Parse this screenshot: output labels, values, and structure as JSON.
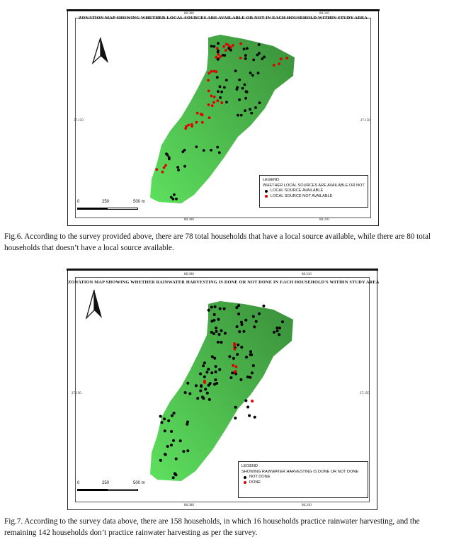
{
  "map1": {
    "title": "ZONATION MAP SHOWING WHETHER LOCAL SOURCES ARE AVAILABLE OR NOT IN EACH HOUSEHOLD WITHIN STUDY AREA",
    "coords": {
      "top_left": "88.300",
      "top_right": "88.310",
      "bottom_left": "88.300",
      "bottom_right": "88.310",
      "left": "27.150",
      "right": "27.150"
    },
    "scale": {
      "zero": "0",
      "mid": "250",
      "end": "500 m"
    },
    "legend": {
      "title": "LEGEND",
      "subtitle": "WHETHER LOCAL SOURCES ARE AVAILABLE OR NOT",
      "items": [
        {
          "label": "LOCAL SOURCE AVAILABLE",
          "color": "#000000"
        },
        {
          "label": "LOCAL SOURCE NOT AVAILABLE",
          "color": "#e00000"
        }
      ]
    },
    "caption": "Fig.6. According to the survey provided above, there are 78 total households that have a local source available, while there are 80 total households that doesn’t have a local source available."
  },
  "map2": {
    "title": "ZONATION MAP SHOWING WHETHER RAINWATER HARVESTING IS DONE OR NOT DONE IN EACH HOUSEHOLD'S WITHIN STUDY AREA",
    "coords": {
      "top_left": "88.300",
      "top_right": "88.310",
      "bottom_left": "88.300",
      "bottom_right": "88.310",
      "left": "27.150",
      "right": "27.150"
    },
    "scale": {
      "zero": "0",
      "mid": "250",
      "end": "500 m"
    },
    "legend": {
      "title": "LEGEND",
      "subtitle": "SHOWING RAINWATER HARVESTING IS DONE OR NOT DONE",
      "items": [
        {
          "label": "NOT DONE",
          "color": "#000000"
        },
        {
          "label": "DONE",
          "color": "#e00000"
        }
      ]
    },
    "caption": "Fig.7. According to the survey data above, there are 158 households, in which 16 households practice rainwater harvesting, and the remaining 142 households don’t practice rainwater harvesting as per the survey."
  },
  "colors": {
    "area_dark": "#3a8f3a",
    "area_light": "#5ee05e",
    "accent_red": "#e00000"
  },
  "icons": [
    "north-arrow-icon"
  ]
}
